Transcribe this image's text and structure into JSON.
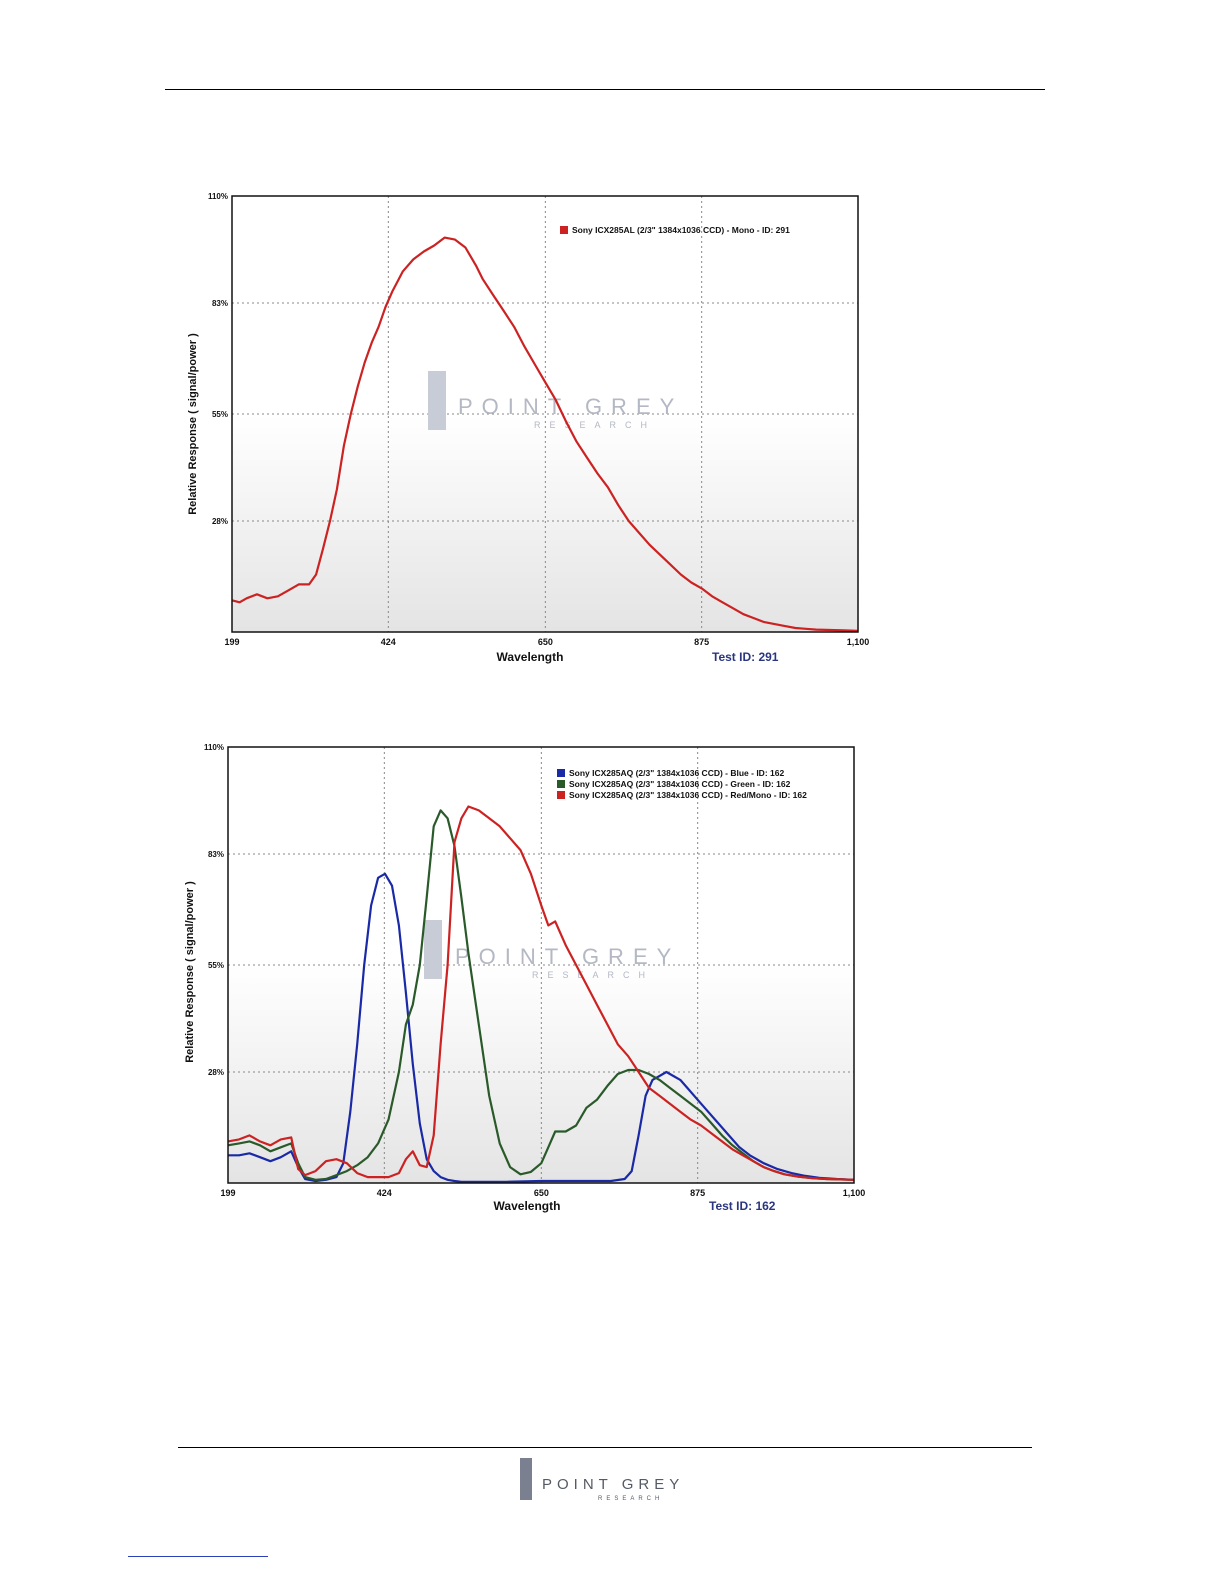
{
  "watermark": {
    "word1": "POINT GREY",
    "word2": "RESEARCH"
  },
  "chart_data": [
    {
      "type": "line",
      "title": "",
      "xlabel": "Wavelength",
      "ylabel": "Relative Response ( signal/power )",
      "test_id": "Test ID: 291",
      "xlim": [
        199,
        1100
      ],
      "ylim": [
        0,
        110
      ],
      "xticks": [
        199,
        424,
        650,
        875,
        1100
      ],
      "xtick_labels": [
        "199",
        "424",
        "650",
        "875",
        "1,100"
      ],
      "yticks": [
        28,
        55,
        83,
        110
      ],
      "ytick_labels": [
        "28%",
        "55%",
        "83%",
        "110%"
      ],
      "grid": true,
      "legend": "top-right",
      "series": [
        {
          "name": "Sony ICX285AL (2/3\" 1384x1036 CCD) - Mono - ID: 291",
          "color": "#cc2222",
          "x": [
            199,
            210,
            220,
            235,
            250,
            265,
            280,
            295,
            310,
            320,
            330,
            340,
            350,
            360,
            370,
            380,
            390,
            400,
            410,
            420,
            430,
            445,
            460,
            475,
            490,
            505,
            520,
            535,
            550,
            560,
            575,
            590,
            605,
            620,
            635,
            650,
            665,
            680,
            695,
            710,
            725,
            740,
            755,
            770,
            785,
            800,
            815,
            830,
            845,
            860,
            875,
            890,
            905,
            920,
            935,
            950,
            965,
            980,
            995,
            1010,
            1025,
            1040,
            1060,
            1080,
            1100
          ],
          "y": [
            8,
            7.5,
            8.5,
            9.5,
            8.5,
            9,
            10.5,
            12,
            12,
            14.5,
            21,
            28,
            36,
            47,
            55,
            62,
            68,
            73,
            77,
            82,
            86,
            91,
            94,
            96,
            97.5,
            99.5,
            99,
            97,
            92.5,
            89,
            85,
            81,
            77,
            72,
            67.5,
            63,
            58.5,
            53,
            48,
            44,
            40,
            36.5,
            32,
            28,
            25,
            22,
            19.5,
            17,
            14.5,
            12.5,
            11,
            9,
            7.5,
            6,
            4.5,
            3.5,
            2.5,
            2,
            1.5,
            1,
            0.8,
            0.6,
            0.5,
            0.4,
            0.3
          ]
        }
      ]
    },
    {
      "type": "line",
      "title": "",
      "xlabel": "Wavelength",
      "ylabel": "Relative Response ( signal/power )",
      "test_id": "Test ID: 162",
      "xlim": [
        199,
        1100
      ],
      "ylim": [
        0,
        110
      ],
      "xticks": [
        199,
        424,
        650,
        875,
        1100
      ],
      "xtick_labels": [
        "199",
        "424",
        "650",
        "875",
        "1,100"
      ],
      "yticks": [
        28,
        55,
        83,
        110
      ],
      "ytick_labels": [
        "28%",
        "55%",
        "83%",
        "110%"
      ],
      "grid": true,
      "legend": "top-right",
      "series": [
        {
          "name": "Sony ICX285AQ (2/3\" 1384x1036 CCD) - Blue  - ID: 162",
          "color": "#1a2aa6",
          "x": [
            199,
            215,
            230,
            245,
            260,
            275,
            290,
            300,
            310,
            325,
            340,
            355,
            365,
            375,
            385,
            395,
            405,
            415,
            425,
            435,
            445,
            455,
            465,
            475,
            485,
            495,
            505,
            515,
            525,
            535,
            550,
            565,
            600,
            650,
            700,
            750,
            770,
            780,
            790,
            800,
            810,
            820,
            830,
            840,
            850,
            860,
            875,
            890,
            905,
            920,
            935,
            950,
            970,
            990,
            1010,
            1030,
            1050,
            1075,
            1100
          ],
          "y": [
            7,
            7,
            7.5,
            6.5,
            5.5,
            6.5,
            8,
            4,
            1,
            0.5,
            0.8,
            1.5,
            5,
            18,
            35,
            55,
            70,
            77,
            78,
            75,
            65,
            48,
            30,
            15,
            6,
            3,
            1.5,
            0.8,
            0.5,
            0.3,
            0.3,
            0.3,
            0.3,
            0.5,
            0.5,
            0.5,
            1,
            3,
            12,
            22,
            26,
            27,
            28,
            27,
            26,
            24,
            21,
            18,
            15,
            12,
            9,
            7,
            5,
            3.5,
            2.5,
            1.8,
            1.3,
            1,
            0.8
          ]
        },
        {
          "name": "Sony ICX285AQ (2/3\" 1384x1036 CCD) - Green  - ID: 162",
          "color": "#2a5a2a",
          "x": [
            199,
            215,
            230,
            245,
            260,
            275,
            290,
            300,
            310,
            325,
            340,
            355,
            370,
            385,
            400,
            415,
            430,
            445,
            455,
            465,
            475,
            485,
            495,
            505,
            515,
            525,
            535,
            545,
            560,
            575,
            590,
            605,
            620,
            635,
            650,
            660,
            670,
            685,
            700,
            715,
            730,
            745,
            760,
            775,
            790,
            805,
            820,
            835,
            850,
            865,
            880,
            895,
            910,
            925,
            940,
            955,
            970,
            985,
            1000,
            1020,
            1040,
            1060,
            1080,
            1100
          ],
          "y": [
            9.5,
            10,
            10.5,
            9.5,
            8,
            9,
            10,
            5,
            1.5,
            0.8,
            1,
            2,
            3,
            4.5,
            6.5,
            10,
            16,
            28,
            40,
            45,
            55,
            72,
            90,
            94,
            92,
            85,
            72,
            58,
            40,
            22,
            10,
            4,
            2.2,
            2.8,
            5,
            9,
            13,
            13,
            14.5,
            19,
            21,
            24.5,
            27.5,
            28.5,
            28.5,
            27.5,
            26,
            24,
            22,
            20,
            18,
            15,
            12,
            9.5,
            7.5,
            5.5,
            4,
            3,
            2.2,
            1.6,
            1.2,
            1,
            0.9,
            0.8
          ]
        },
        {
          "name": "Sony ICX285AQ (2/3\" 1384x1036 CCD) - Red/Mono - ID: 162",
          "color": "#cc2222",
          "x": [
            199,
            215,
            230,
            245,
            260,
            275,
            290,
            300,
            310,
            325,
            340,
            355,
            370,
            385,
            400,
            415,
            430,
            445,
            455,
            465,
            475,
            485,
            495,
            505,
            515,
            525,
            535,
            545,
            560,
            575,
            590,
            605,
            620,
            635,
            650,
            660,
            670,
            685,
            700,
            715,
            730,
            745,
            760,
            775,
            790,
            805,
            820,
            835,
            850,
            865,
            880,
            895,
            910,
            925,
            940,
            955,
            970,
            985,
            1000,
            1020,
            1040,
            1060,
            1080,
            1100
          ],
          "y": [
            10.5,
            11,
            12,
            10.5,
            9.5,
            11,
            11.5,
            3.5,
            2,
            3,
            5.5,
            6,
            5,
            2.5,
            1.5,
            1.5,
            1.5,
            2.5,
            6,
            8,
            4.5,
            4,
            12,
            35,
            55,
            86,
            92,
            95,
            94,
            92,
            90,
            87,
            84,
            78,
            70,
            65,
            66,
            60,
            55,
            50,
            45,
            40,
            35,
            32,
            28,
            24,
            22,
            20,
            18,
            16,
            14.5,
            12.5,
            10.5,
            8.5,
            7,
            5.5,
            4,
            3,
            2.2,
            1.6,
            1.2,
            1,
            0.9,
            0.8
          ]
        }
      ]
    }
  ]
}
